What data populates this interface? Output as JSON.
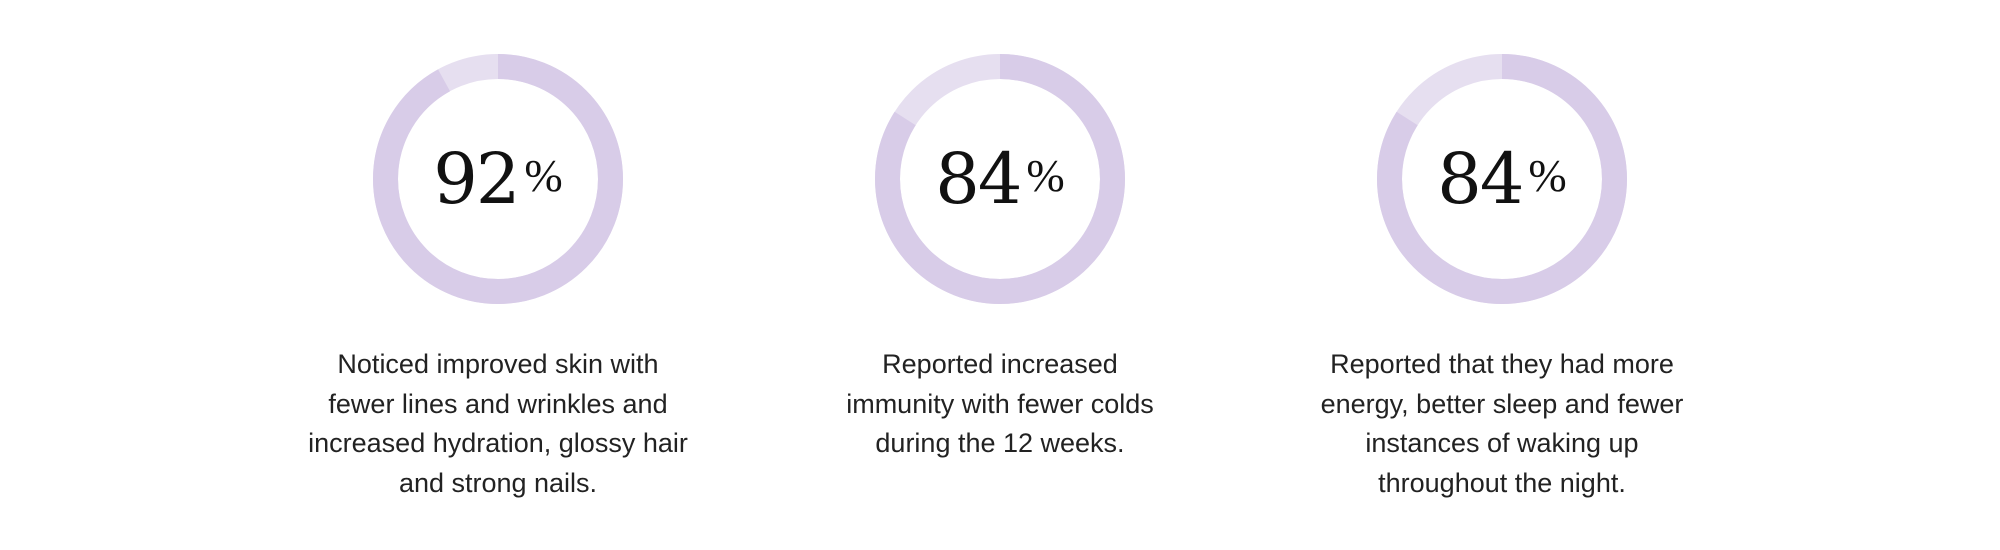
{
  "colors": {
    "ring_fill": "#d8cce8",
    "ring_track": "#e6dff0",
    "text": "#111111"
  },
  "stats": [
    {
      "value": 92,
      "number": "92",
      "unit": "%",
      "caption": "Noticed improved skin with fewer lines and wrinkles and increased hydration, glossy hair and strong nails."
    },
    {
      "value": 84,
      "number": "84",
      "unit": "%",
      "caption": "Reported increased immunity with fewer colds during the 12 weeks."
    },
    {
      "value": 84,
      "number": "84",
      "unit": "%",
      "caption": "Reported that they had more energy, better sleep and fewer instances of waking up throughout the night."
    }
  ]
}
